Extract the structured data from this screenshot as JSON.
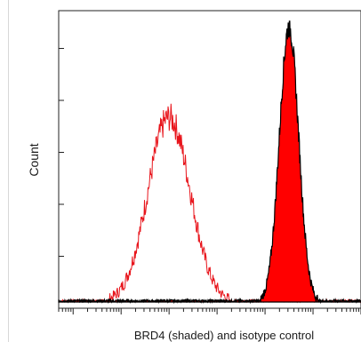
{
  "chart_data": {
    "type": "area",
    "xlabel": "BRD4 (shaded) and isotype control",
    "ylabel": "Count",
    "xscale": "log",
    "xlim": [
      0.5,
      1000000
    ],
    "ylim": [
      0,
      100
    ],
    "grid": false,
    "legend": "none",
    "series": [
      {
        "style": "outline",
        "color": "#e8141b",
        "peak_x": 100,
        "peak_y": 67,
        "spread_log10": 0.44,
        "noise": 5
      },
      {
        "style": "filled",
        "color": "#ff0000",
        "edge_color": "#000000",
        "peak_x": 31600,
        "peak_y": 100,
        "spread_log10": 0.2,
        "noise": 4
      }
    ]
  }
}
